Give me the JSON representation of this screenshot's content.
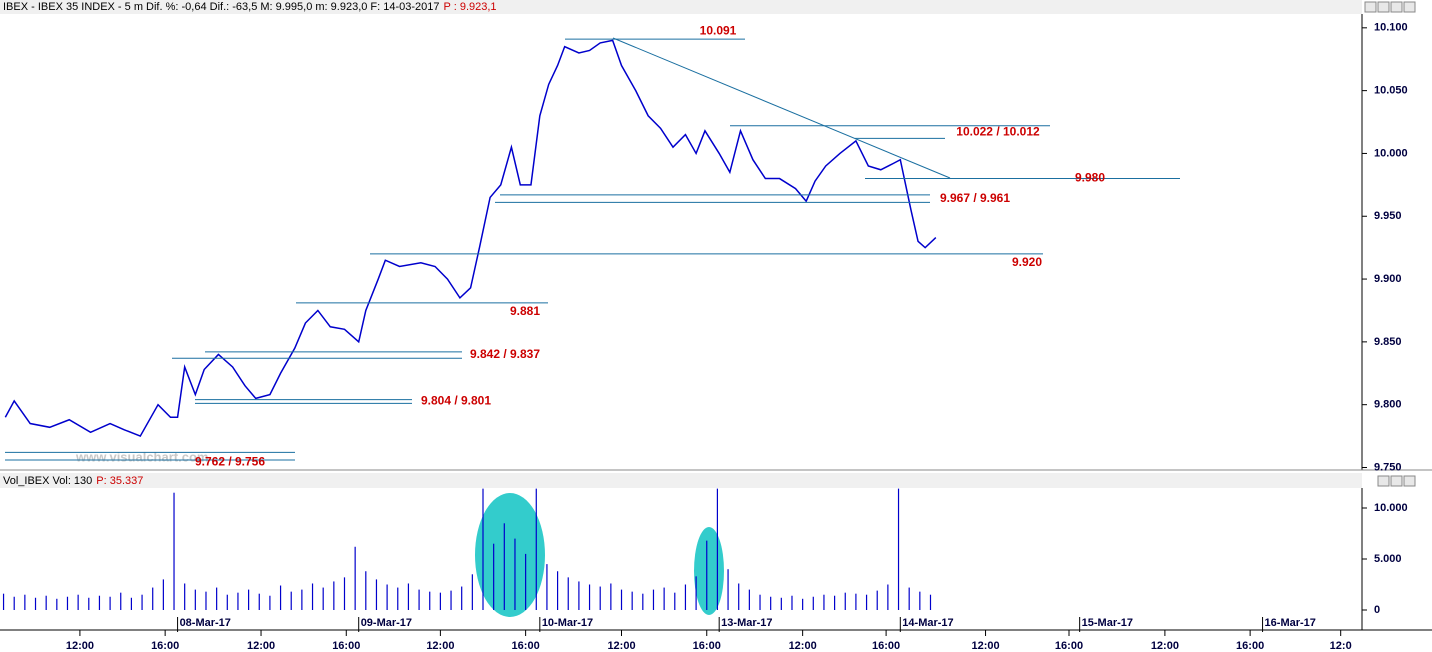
{
  "chart_data": [
    {
      "type": "line",
      "title": "IBEX - IBEX 35 INDEX -  5 m  Dif. %: -0,64  Dif.: -63,5  M: 9.995,0  m: 9.923,0  F: 14-03-2017",
      "title_extra": "P : 9.923,1",
      "watermark": "www.visualchart.com",
      "x": [
        3,
        8,
        17,
        28,
        39,
        51,
        62,
        70,
        79,
        89,
        96,
        100,
        104,
        110,
        115,
        123,
        131,
        138,
        144,
        152,
        158,
        166,
        172,
        179,
        186,
        194,
        202,
        206,
        213,
        217,
        225,
        237,
        245,
        252,
        259,
        265,
        270,
        276,
        282,
        288,
        293,
        299,
        304,
        309,
        314,
        318,
        326,
        332,
        338,
        345,
        350,
        358,
        365,
        372,
        379,
        386,
        392,
        397,
        405,
        411,
        417,
        424,
        431,
        439,
        448,
        454,
        459,
        465,
        473,
        482,
        489,
        496,
        503,
        507,
        510,
        513,
        517,
        521,
        527
      ],
      "series": [
        {
          "name": "IBEX",
          "color": "#0000cc",
          "values": [
            9790,
            9803,
            9785,
            9782,
            9788,
            9778,
            9785,
            9780,
            9775,
            9800,
            9790,
            9790,
            9830,
            9808,
            9828,
            9840,
            9830,
            9815,
            9805,
            9808,
            9825,
            9845,
            9865,
            9875,
            9862,
            9860,
            9850,
            9875,
            9900,
            9915,
            9910,
            9913,
            9910,
            9900,
            9885,
            9893,
            9925,
            9965,
            9975,
            10005,
            9975,
            9975,
            10030,
            10055,
            10070,
            10085,
            10080,
            10082,
            10088,
            10090,
            10070,
            10050,
            10030,
            10020,
            10005,
            10015,
            10000,
            10018,
            10000,
            9985,
            10018,
            9995,
            9980,
            9980,
            9972,
            9962,
            9978,
            9990,
            10000,
            10010,
            9990,
            9987,
            9992,
            9995,
            9975,
            9955,
            9930,
            9925,
            9933
          ]
        }
      ],
      "levels": [
        {
          "label": "10.091",
          "values": [
            10091
          ]
        },
        {
          "label": "10.022 / 10.012",
          "values": [
            10022,
            10012
          ]
        },
        {
          "label": "9.980",
          "values": [
            9980
          ]
        },
        {
          "label": "9.967 / 9.961",
          "values": [
            9967,
            9961
          ]
        },
        {
          "label": "9.920",
          "values": [
            9920
          ]
        },
        {
          "label": "9.881",
          "values": [
            9881
          ]
        },
        {
          "label": "9.842 / 9.837",
          "values": [
            9842,
            9837
          ]
        },
        {
          "label": "9.804 / 9.801",
          "values": [
            9804,
            9801
          ]
        },
        {
          "label": "9.762 / 9.756",
          "values": [
            9762,
            9756
          ]
        }
      ],
      "xlim": [
        0,
        767
      ],
      "ylim": [
        9748,
        10111
      ],
      "yticks": [
        {
          "value": 10100,
          "label": "10.100"
        },
        {
          "value": 10050,
          "label": "10.050"
        },
        {
          "value": 10000,
          "label": "10.000"
        },
        {
          "value": 9950,
          "label": "9.950"
        },
        {
          "value": 9900,
          "label": "9.900"
        },
        {
          "value": 9850,
          "label": "9.850"
        },
        {
          "value": 9800,
          "label": "9.800"
        },
        {
          "value": 9750,
          "label": "9.750"
        }
      ]
    },
    {
      "type": "bar",
      "title": "Vol_IBEX Vol: 130",
      "title_extra": "P: 35.337",
      "color": "#0000cc",
      "x": [
        2,
        8,
        14,
        20,
        26,
        32,
        38,
        44,
        50,
        56,
        62,
        68,
        74,
        80,
        86,
        92,
        98,
        104,
        110,
        116,
        122,
        128,
        134,
        140,
        146,
        152,
        158,
        164,
        170,
        176,
        182,
        188,
        194,
        200,
        206,
        212,
        218,
        224,
        230,
        236,
        242,
        248,
        254,
        260,
        266,
        272,
        278,
        284,
        290,
        296,
        302,
        308,
        314,
        320,
        326,
        332,
        338,
        344,
        350,
        356,
        362,
        368,
        374,
        380,
        386,
        392,
        398,
        404,
        410,
        416,
        422,
        428,
        434,
        440,
        446,
        452,
        458,
        464,
        470,
        476,
        482,
        488,
        494,
        500,
        506,
        512,
        518,
        524
      ],
      "values": [
        1600,
        1300,
        1500,
        1200,
        1400,
        1100,
        1300,
        1500,
        1200,
        1400,
        1300,
        1700,
        1200,
        1500,
        2200,
        3000,
        11500,
        2600,
        2000,
        1800,
        2200,
        1500,
        1700,
        2000,
        1600,
        1400,
        2400,
        1800,
        2000,
        2600,
        2200,
        2800,
        3200,
        6200,
        3800,
        3000,
        2500,
        2200,
        2600,
        2000,
        1800,
        1700,
        1900,
        2300,
        3500,
        11900,
        6500,
        8500,
        7000,
        5500,
        11900,
        4500,
        3800,
        3200,
        2800,
        2500,
        2300,
        2600,
        2000,
        1800,
        1600,
        2000,
        2200,
        1700,
        2500,
        3300,
        6800,
        11900,
        4000,
        2600,
        2000,
        1500,
        1300,
        1200,
        1400,
        1100,
        1300,
        1500,
        1400,
        1700,
        1600,
        1500,
        1900,
        2500,
        11900,
        2200,
        1800,
        1500
      ],
      "xlim": [
        0,
        767
      ],
      "ylim": [
        -490,
        11765
      ],
      "yticks": [
        {
          "value": 10000,
          "label": "10.000"
        },
        {
          "value": 5000,
          "label": "5.000"
        },
        0
      ],
      "xticks": [
        {
          "value": 45,
          "label": "12:00"
        },
        {
          "value": 93,
          "label": "16:00"
        },
        {
          "value": 100,
          "label": "08-Mar-17"
        },
        {
          "value": 147,
          "label": "12:00"
        },
        {
          "value": 195,
          "label": "16:00"
        },
        {
          "value": 202,
          "label": "09-Mar-17"
        },
        {
          "value": 248,
          "label": "12:00"
        },
        {
          "value": 296,
          "label": "16:00"
        },
        {
          "value": 304,
          "label": "10-Mar-17"
        },
        {
          "value": 350,
          "label": "12:00"
        },
        {
          "value": 398,
          "label": "16:00"
        },
        {
          "value": 405,
          "label": "13-Mar-17"
        },
        {
          "value": 452,
          "label": "12:00"
        },
        {
          "value": 499,
          "label": "16:00"
        },
        {
          "value": 507,
          "label": "14-Mar-17"
        },
        {
          "value": 555,
          "label": "12:00"
        },
        {
          "value": 602,
          "label": "16:00"
        },
        {
          "value": 608,
          "label": "15-Mar-17"
        },
        {
          "value": 656,
          "label": "12:00"
        },
        {
          "value": 704,
          "label": "16:00"
        },
        {
          "value": 711,
          "label": "16-Mar-17"
        },
        {
          "value": 755,
          "label": "12:0"
        }
      ]
    }
  ]
}
